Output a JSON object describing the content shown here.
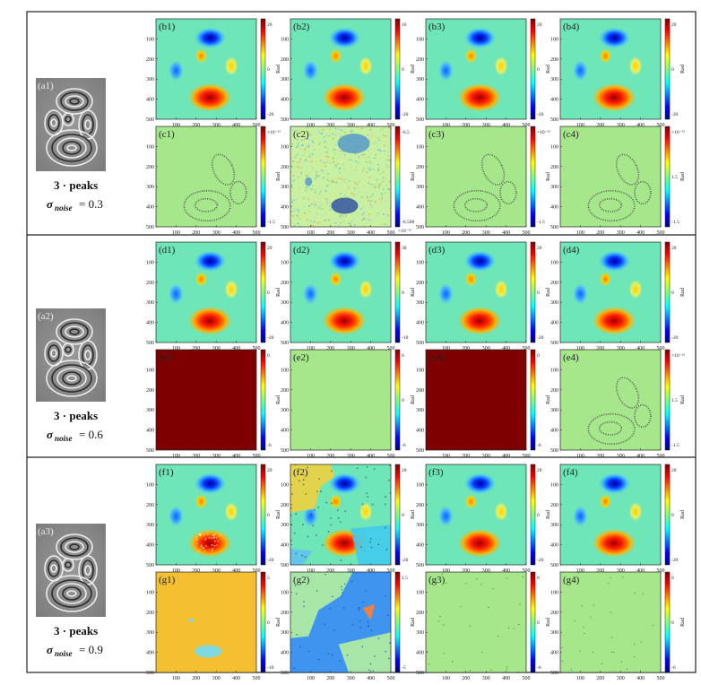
{
  "figure": {
    "rows": [
      {
        "fringe_label": "(a1)",
        "peaks_label": "3 · peaks",
        "sigma_symbol": "σ",
        "sigma_subscript": "noise",
        "sigma_value": "= 0.3",
        "top": [
          {
            "label": "(b1)",
            "type": "phase",
            "cb": [
              "20",
              "0",
              "-20"
            ]
          },
          {
            "label": "(b2)",
            "type": "phase",
            "cb": [
              "10",
              "0",
              "-20"
            ]
          },
          {
            "label": "(b3)",
            "type": "phase",
            "cb": [
              "20",
              "0",
              "-20"
            ]
          },
          {
            "label": "(b4)",
            "type": "phase",
            "cb": [
              "20",
              "0",
              "-20"
            ]
          }
        ],
        "bottom": [
          {
            "label": "(c1)",
            "type": "err_ring",
            "cb": [
              "×10⁻¹³",
              "",
              "-1.5"
            ]
          },
          {
            "label": "(c2)",
            "type": "err_noise",
            "cb": [
              "-6.5",
              "",
              "-6.508"
            ],
            "cb_bottom_exp": "×10⁻¹³"
          },
          {
            "label": "(c3)",
            "type": "err_ring",
            "cb": [
              "×10⁻¹³",
              "",
              "-1.5"
            ]
          },
          {
            "label": "(c4)",
            "type": "err_ring",
            "cb": [
              "×10⁻¹³",
              "1.5",
              "-1.5"
            ]
          }
        ]
      },
      {
        "fringe_label": "(a2)",
        "peaks_label": "3 · peaks",
        "sigma_symbol": "σ",
        "sigma_subscript": "noise",
        "sigma_value": "= 0.6",
        "top": [
          {
            "label": "(d1)",
            "type": "phase",
            "cb": [
              "20",
              "0",
              "-20"
            ]
          },
          {
            "label": "(d2)",
            "type": "phase",
            "cb": [
              "30",
              "0",
              "-10"
            ]
          },
          {
            "label": "(d3)",
            "type": "phase",
            "cb": [
              "20",
              "0",
              "-20"
            ]
          },
          {
            "label": "(d4)",
            "type": "phase",
            "cb": [
              "20",
              "0",
              "-20"
            ]
          }
        ],
        "bottom": [
          {
            "label": "(e1)",
            "type": "solid_dark",
            "cb": [
              "0",
              "",
              "-6"
            ]
          },
          {
            "label": "(e2)",
            "type": "solid_green",
            "cb": [
              "6",
              "0",
              "-6"
            ]
          },
          {
            "label": "(e3)",
            "type": "solid_dark",
            "cb": [
              "0",
              "",
              "-6"
            ]
          },
          {
            "label": "(e4)",
            "type": "err_ring",
            "cb": [
              "×10⁻¹³",
              "1.5",
              "-1.5"
            ]
          }
        ]
      },
      {
        "fringe_label": "(a3)",
        "peaks_label": "3 · peaks",
        "sigma_symbol": "σ",
        "sigma_subscript": "noise",
        "sigma_value": "= 0.9",
        "top": [
          {
            "label": "(f1)",
            "type": "phase_f1",
            "cb": [
              "20",
              "0",
              "-20"
            ]
          },
          {
            "label": "(f2)",
            "type": "phase_f2",
            "cb": [
              "20",
              "0",
              "-20"
            ]
          },
          {
            "label": "(f3)",
            "type": "phase",
            "cb": [
              "20",
              "0",
              "-20"
            ]
          },
          {
            "label": "(f4)",
            "type": "phase",
            "cb": [
              "20",
              "0",
              "-20"
            ]
          }
        ],
        "bottom": [
          {
            "label": "(g1)",
            "type": "err_g1",
            "cb": [
              "5",
              "0",
              "-10"
            ]
          },
          {
            "label": "(g2)",
            "type": "err_g2",
            "cb": [
              "1.5",
              "",
              "-5"
            ]
          },
          {
            "label": "(g3)",
            "type": "err_dots",
            "cb": [
              "6",
              "0",
              "-6"
            ]
          },
          {
            "label": "(g4)",
            "type": "err_dots",
            "cb": [
              "6",
              "0",
              "-6"
            ]
          }
        ]
      }
    ],
    "axis_ticks_y": [
      "100",
      "200",
      "300",
      "400",
      "500"
    ],
    "axis_ticks_x": [
      "100",
      "200",
      "300",
      "400",
      "500"
    ],
    "colorbar_unit": "Rad",
    "colors": {
      "bg_green": "#a6e78c",
      "map_cyan": "#6fe6b8",
      "dark_red": "#7e0000",
      "border": "#222222"
    }
  }
}
